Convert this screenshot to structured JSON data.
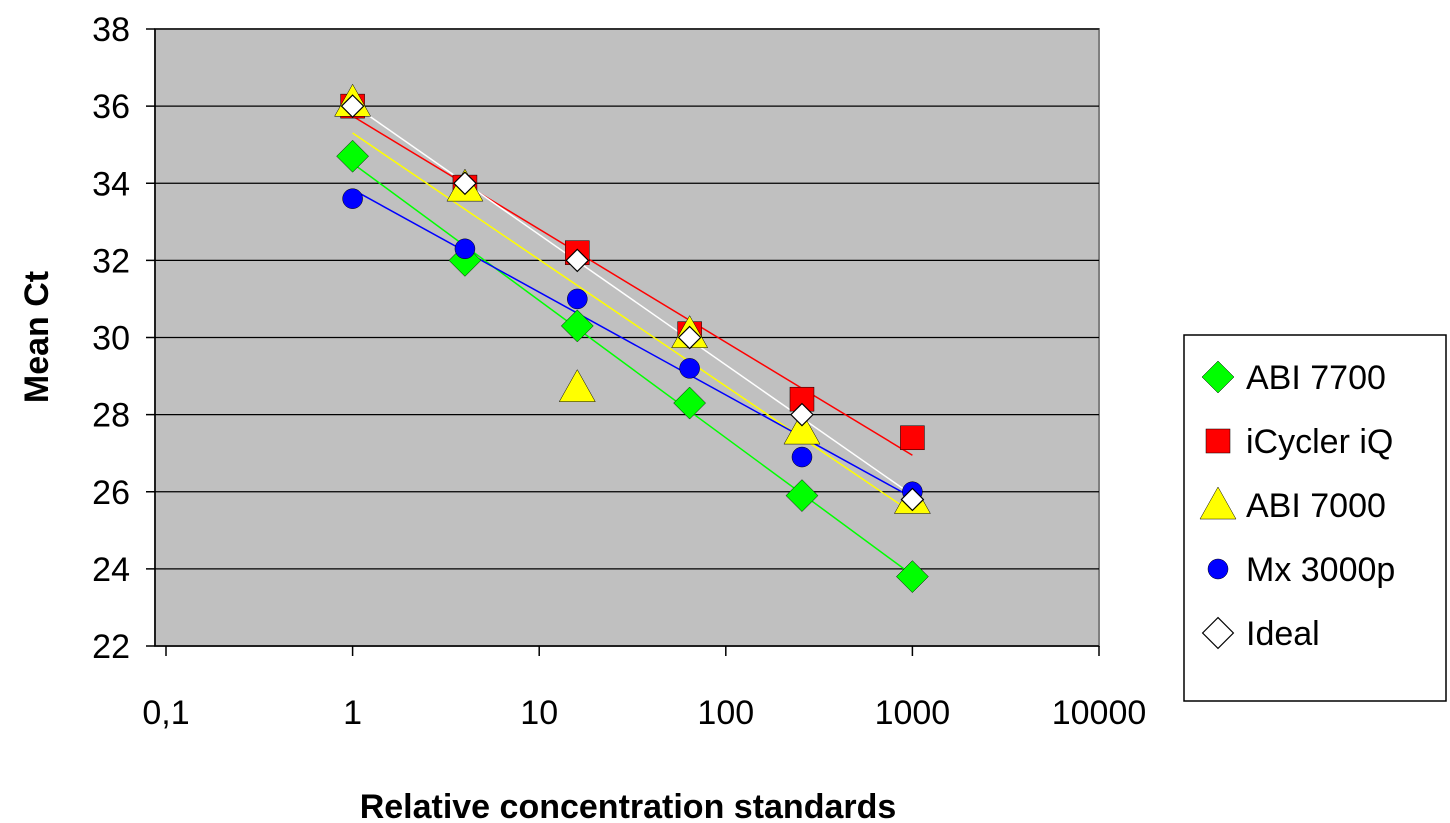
{
  "chart_data": {
    "type": "scatter",
    "title": "",
    "xlabel": "Relative concentration standards",
    "ylabel": "Mean Ct",
    "xscale": "log",
    "xlim": [
      0.1,
      10000
    ],
    "ylim": [
      22,
      38
    ],
    "x_ticks": [
      0.1,
      1,
      10,
      100,
      1000,
      10000
    ],
    "x_tick_labels": [
      "0,1",
      "1",
      "10",
      "100",
      "1000",
      "10000"
    ],
    "y_ticks": [
      22,
      24,
      26,
      28,
      30,
      32,
      34,
      36,
      38
    ],
    "y_tick_labels": [
      "22",
      "24",
      "26",
      "28",
      "30",
      "32",
      "34",
      "36",
      "38"
    ],
    "grid": "horizontal",
    "plot_background": "#c0c0c0",
    "legend_position": "right",
    "trendlines": true,
    "series": [
      {
        "name": "ABI 7700",
        "marker": "diamond",
        "color": "#00ff00",
        "x": [
          1,
          4,
          16,
          64,
          256,
          1000
        ],
        "y": [
          34.7,
          32.0,
          30.3,
          28.3,
          25.9,
          23.8
        ]
      },
      {
        "name": "iCycler iQ",
        "marker": "square",
        "color": "#ff0000",
        "x": [
          1,
          4,
          16,
          64,
          256,
          1000
        ],
        "y": [
          36.0,
          33.9,
          32.2,
          30.1,
          28.4,
          27.4
        ]
      },
      {
        "name": "ABI 7000",
        "marker": "triangle",
        "color": "#ffff00",
        "x": [
          1,
          4,
          16,
          64,
          256,
          1000
        ],
        "y": [
          36.1,
          33.9,
          28.7,
          30.1,
          27.6,
          25.8
        ]
      },
      {
        "name": "Mx 3000p",
        "marker": "circle",
        "color": "#0000ff",
        "x": [
          1,
          4,
          16,
          64,
          256,
          1000
        ],
        "y": [
          33.6,
          32.3,
          31.0,
          29.2,
          26.9,
          26.0
        ]
      },
      {
        "name": "Ideal",
        "marker": "diamond-open",
        "color": "#ffffff",
        "x": [
          1,
          4,
          16,
          64,
          256,
          1000
        ],
        "y": [
          36.0,
          34.0,
          32.0,
          30.0,
          28.0,
          25.8
        ]
      }
    ]
  }
}
